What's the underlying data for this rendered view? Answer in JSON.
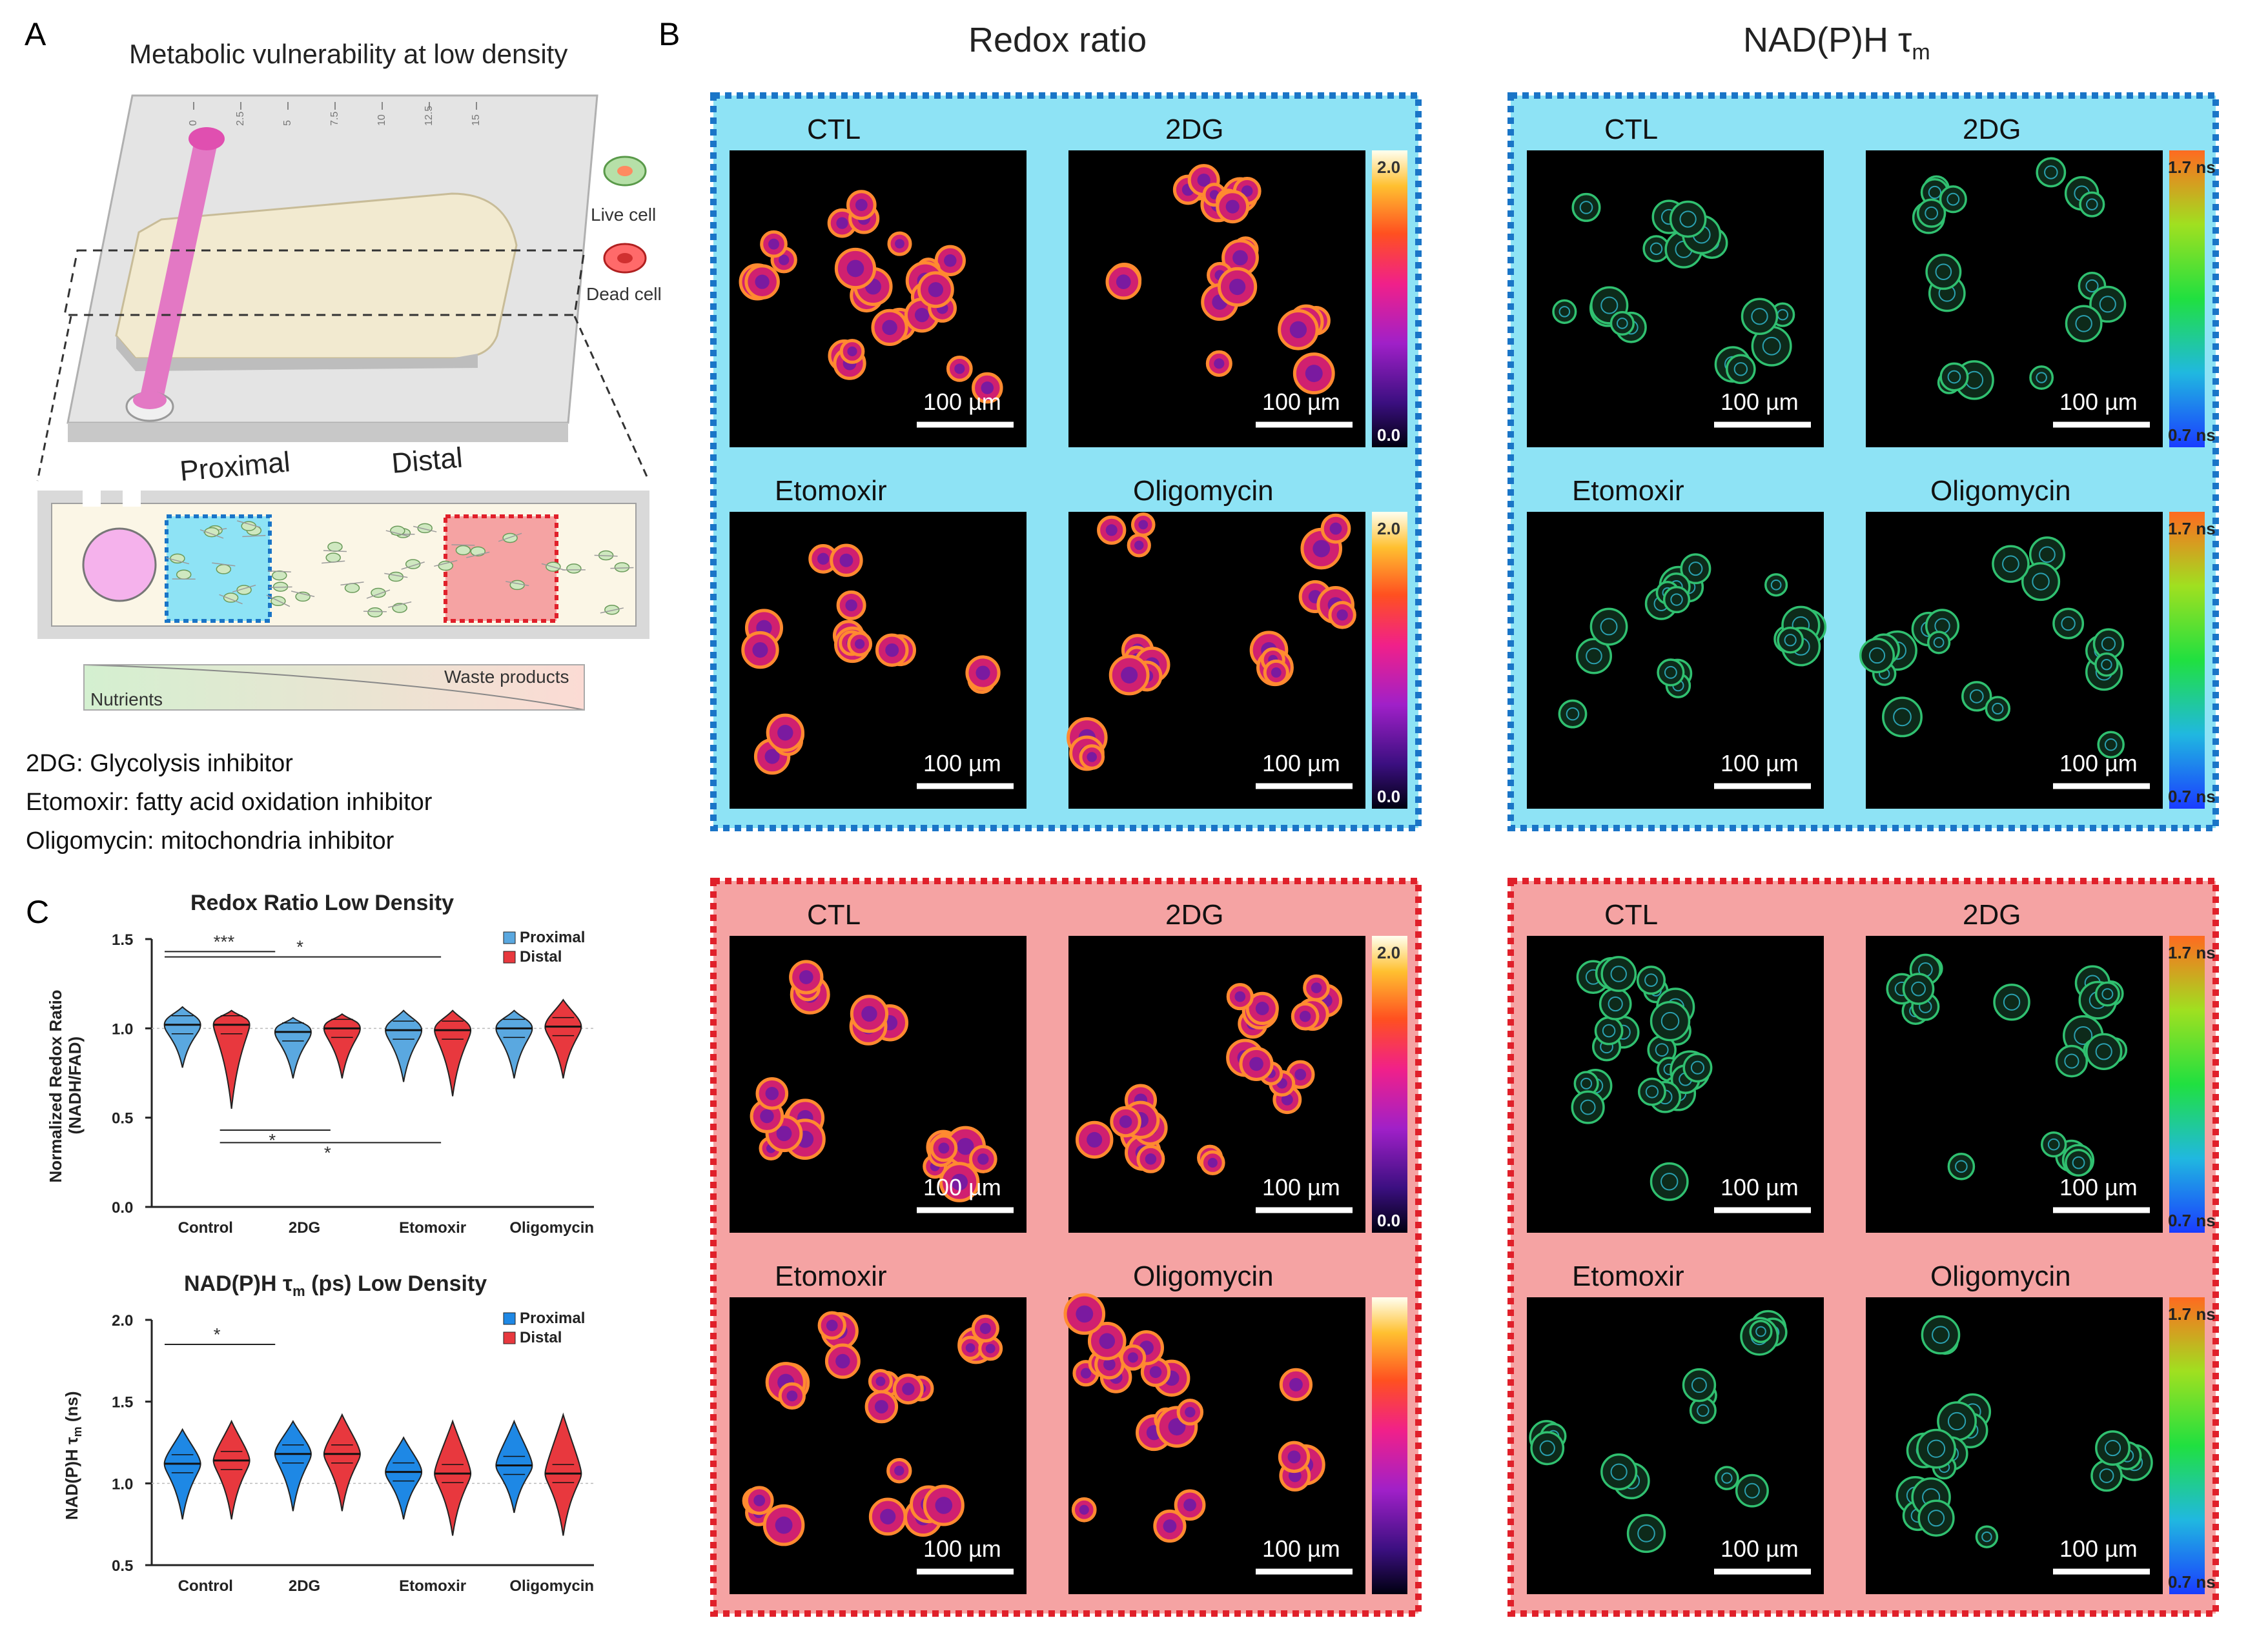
{
  "panel_labels": {
    "a": "A",
    "b": "B",
    "c": "C"
  },
  "panelA": {
    "title": "Metabolic vulnerability at low density",
    "live_cell": "Live cell",
    "dead_cell": "Dead cell",
    "proximal": "Proximal",
    "distal": "Distal",
    "nutrients": "Nutrients",
    "waste": "Waste products",
    "ruler_ticks": [
      "0",
      "2.5",
      "5",
      "7.5",
      "10",
      "12.5",
      "15"
    ],
    "notes": [
      "2DG: Glycolysis inhibitor",
      "Etomoxir: fatty acid oxidation inhibitor",
      "Oligomycin: mitochondria inhibitor"
    ]
  },
  "panelB": {
    "col_titles": {
      "redox": "Redox ratio",
      "nadph_prefix": "NAD(P)H τ",
      "nadph_sub": "m"
    },
    "conditions": [
      "CTL",
      "2DG",
      "Etomoxir",
      "Oligomycin"
    ],
    "scale_bar": "100 µm",
    "redox_cbar": {
      "max": "2.0",
      "min": "0.0"
    },
    "flim_cbar": {
      "max": "1.7 ns",
      "min": "0.7 ns"
    },
    "colors": {
      "proximal_bg": "#8ee3f5",
      "proximal_border": "#1a75c7",
      "distal_bg": "#f5a3a3",
      "distal_border": "#e0202a"
    }
  },
  "chart_data": [
    {
      "type": "violin",
      "title": "Redox Ratio Low Density",
      "ylabel_line1": "Normalized Redox Ratio",
      "ylabel_line2": "(NADH/FAD)",
      "categories": [
        "Control",
        "2DG",
        "Etomoxir",
        "Oligomycin"
      ],
      "yticks": [
        "0.0",
        "0.5",
        "1.0",
        "1.5"
      ],
      "ylim": [
        0,
        1.5
      ],
      "legend": [
        "Proximal",
        "Distal"
      ],
      "series": [
        {
          "name": "Proximal",
          "color": "#5aa8e0",
          "medians": [
            1.02,
            0.98,
            0.99,
            1.0
          ],
          "mins": [
            0.78,
            0.72,
            0.7,
            0.72
          ],
          "maxs": [
            1.12,
            1.06,
            1.1,
            1.1
          ]
        },
        {
          "name": "Distal",
          "color": "#e8383e",
          "medians": [
            1.02,
            1.0,
            0.99,
            1.01
          ],
          "mins": [
            0.55,
            0.72,
            0.62,
            0.72
          ],
          "maxs": [
            1.1,
            1.08,
            1.1,
            1.16
          ]
        }
      ],
      "significance": [
        {
          "label": "***",
          "y": 1.43
        },
        {
          "label": "*",
          "y": 1.4
        },
        {
          "label": "*",
          "y": 0.43
        },
        {
          "label": "*",
          "y": 0.36
        }
      ]
    },
    {
      "type": "violin",
      "title_prefix": "NAD(P)H τ",
      "title_sub": "m",
      "title_suffix": " (ps) Low Density",
      "ylabel_prefix": "NAD(P)H τ",
      "ylabel_sub": "m",
      "ylabel_suffix": " (ns)",
      "categories": [
        "Control",
        "2DG",
        "Etomoxir",
        "Oligomycin"
      ],
      "yticks": [
        "0.5",
        "1.0",
        "1.5",
        "2.0"
      ],
      "ylim": [
        0.5,
        2.0
      ],
      "legend": [
        "Proximal",
        "Distal"
      ],
      "series": [
        {
          "name": "Proximal",
          "color": "#1e88e5",
          "medians": [
            1.12,
            1.18,
            1.07,
            1.11
          ],
          "mins": [
            0.78,
            0.83,
            0.78,
            0.82
          ],
          "maxs": [
            1.33,
            1.38,
            1.28,
            1.38
          ]
        },
        {
          "name": "Distal",
          "color": "#e8383e",
          "medians": [
            1.14,
            1.18,
            1.06,
            1.06
          ],
          "mins": [
            0.78,
            0.83,
            0.68,
            0.68
          ],
          "maxs": [
            1.38,
            1.42,
            1.38,
            1.42
          ]
        }
      ],
      "significance": [
        {
          "label": "*",
          "y": 1.85
        }
      ]
    }
  ]
}
